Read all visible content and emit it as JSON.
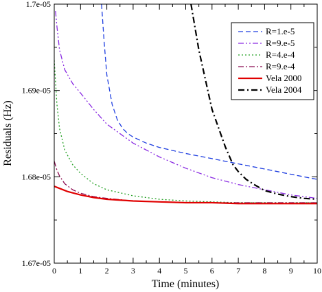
{
  "chart_data": {
    "type": "line",
    "xlabel": "Time (minutes)",
    "ylabel": "Residuals (Hz)",
    "xlim": [
      0,
      10
    ],
    "ylim": [
      1.67e-05,
      1.7e-05
    ],
    "x_ticks": [
      0,
      1,
      2,
      3,
      4,
      5,
      6,
      7,
      8,
      9,
      10
    ],
    "x_tick_labels": [
      "0",
      "1",
      "2",
      "3",
      "4",
      "5",
      "6",
      "7",
      "8",
      "9",
      "10"
    ],
    "y_ticks": [
      1.67e-05,
      1.68e-05,
      1.69e-05,
      1.7e-05
    ],
    "y_tick_labels": [
      "1.67e-05",
      "1.68e-05",
      "1.69e-05",
      "1.7e-05"
    ],
    "grid": false,
    "legend_position": "top-right",
    "series": [
      {
        "name": "R=1.e-5",
        "color": "#1f3fe0",
        "dash": "dashed",
        "x": [
          1.8,
          1.9,
          2.0,
          2.2,
          2.4,
          2.6,
          2.8,
          3.0,
          3.5,
          4.0,
          5.0,
          6.0,
          7.0,
          8.0,
          9.0,
          10.0
        ],
        "y": [
          1.7e-05,
          1.6955e-05,
          1.6918e-05,
          1.6884e-05,
          1.6866e-05,
          1.6856e-05,
          1.685e-05,
          1.6846e-05,
          1.6839e-05,
          1.6834e-05,
          1.6827e-05,
          1.6821e-05,
          1.6815e-05,
          1.6809e-05,
          1.6803e-05,
          1.6797e-05
        ]
      },
      {
        "name": "R=9.e-5",
        "color": "#8a2be2",
        "dash": "dash-dot-dot",
        "x": [
          0.05,
          0.1,
          0.2,
          0.4,
          0.7,
          1.0,
          1.5,
          2.0,
          3.0,
          4.0,
          5.0,
          6.0,
          7.0,
          8.0,
          9.0,
          10.0
        ],
        "y": [
          1.6992e-05,
          1.6975e-05,
          1.6947e-05,
          1.6924e-05,
          1.6908e-05,
          1.6897e-05,
          1.6878e-05,
          1.6861e-05,
          1.6839e-05,
          1.6823e-05,
          1.681e-05,
          1.6799e-05,
          1.6791e-05,
          1.6785e-05,
          1.6779e-05,
          1.6775e-05
        ]
      },
      {
        "name": "R=4.e-4",
        "color": "#1f9e1f",
        "dash": "dotted",
        "x": [
          0.0,
          0.1,
          0.2,
          0.4,
          0.7,
          1.0,
          1.5,
          2.0,
          3.0,
          4.0,
          5.0,
          6.0,
          7.0,
          8.0,
          9.0,
          10.0
        ],
        "y": [
          1.6935e-05,
          1.6885e-05,
          1.6856e-05,
          1.6831e-05,
          1.6814e-05,
          1.6804e-05,
          1.6792e-05,
          1.6785e-05,
          1.6778e-05,
          1.6774e-05,
          1.6772e-05,
          1.6771e-05,
          1.677e-05,
          1.677e-05,
          1.677e-05,
          1.677e-05
        ]
      },
      {
        "name": "R=9.e-4",
        "color": "#8b0a50",
        "dash": "dash-dot",
        "x": [
          0.0,
          0.1,
          0.2,
          0.4,
          0.7,
          1.0,
          1.5,
          2.0,
          3.0,
          4.0,
          5.0,
          6.0,
          7.0,
          8.0,
          9.0,
          10.0
        ],
        "y": [
          1.6818e-05,
          1.6808e-05,
          1.6801e-05,
          1.6792e-05,
          1.6785e-05,
          1.6781e-05,
          1.6777e-05,
          1.6775e-05,
          1.6772e-05,
          1.6771e-05,
          1.677e-05,
          1.677e-05,
          1.677e-05,
          1.677e-05,
          1.677e-05,
          1.677e-05
        ]
      },
      {
        "name": "Vela 2000",
        "color": "#e00000",
        "dash": "solid",
        "x": [
          0.0,
          0.5,
          1.0,
          1.5,
          2.0,
          3.0,
          4.0,
          5.0,
          6.0,
          7.0,
          8.0,
          9.0,
          10.0
        ],
        "y": [
          1.6789e-05,
          1.6783e-05,
          1.6779e-05,
          1.6776e-05,
          1.6774e-05,
          1.6772e-05,
          1.6771e-05,
          1.677e-05,
          1.677e-05,
          1.6769e-05,
          1.6769e-05,
          1.6769e-05,
          1.6769e-05
        ]
      },
      {
        "name": "Vela 2004",
        "color": "#000000",
        "dash": "dash-dot-bold",
        "x": [
          5.2,
          5.5,
          6.0,
          6.5,
          6.8,
          7.0,
          7.3,
          7.6,
          8.0,
          8.5,
          9.0,
          9.5,
          10.0
        ],
        "y": [
          1.7e-05,
          1.6947e-05,
          1.6878e-05,
          1.6835e-05,
          1.6814e-05,
          1.6806e-05,
          1.6797e-05,
          1.6791e-05,
          1.6784e-05,
          1.678e-05,
          1.6777e-05,
          1.6775e-05,
          1.6774e-05
        ]
      }
    ]
  }
}
